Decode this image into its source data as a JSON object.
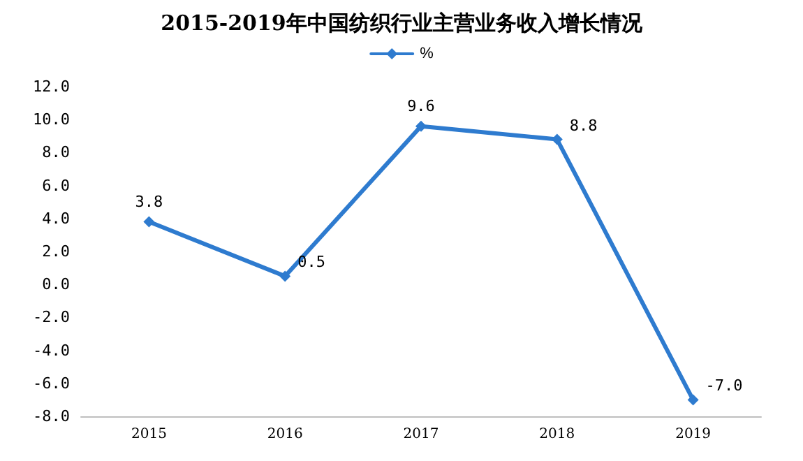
{
  "chart_data": {
    "type": "line",
    "title": "2015-2019年中国纺织行业主营业务收入增长情况",
    "categories": [
      "2015",
      "2016",
      "2017",
      "2018",
      "2019"
    ],
    "series": [
      {
        "name": "%",
        "color": "#2e7bcf",
        "values": [
          3.8,
          0.5,
          9.6,
          8.8,
          -7.0
        ],
        "value_labels": [
          "3.8",
          "0.5",
          "9.6",
          "8.8",
          "-7.0"
        ]
      }
    ],
    "ylim": [
      -8,
      12
    ],
    "yticks": [
      {
        "value": -8,
        "label": "-8.0"
      },
      {
        "value": -6,
        "label": "-6.0"
      },
      {
        "value": -4,
        "label": "-4.0"
      },
      {
        "value": -2,
        "label": "-2.0"
      },
      {
        "value": 0,
        "label": "0.0"
      },
      {
        "value": 2,
        "label": "2.0"
      },
      {
        "value": 4,
        "label": "4.0"
      },
      {
        "value": 6,
        "label": "6.0"
      },
      {
        "value": 8,
        "label": "8.0"
      },
      {
        "value": 10,
        "label": "10.0"
      },
      {
        "value": 12,
        "label": "12.0"
      }
    ],
    "grid": false,
    "legend": "top",
    "marker": "diamond",
    "line_style": "solid"
  }
}
